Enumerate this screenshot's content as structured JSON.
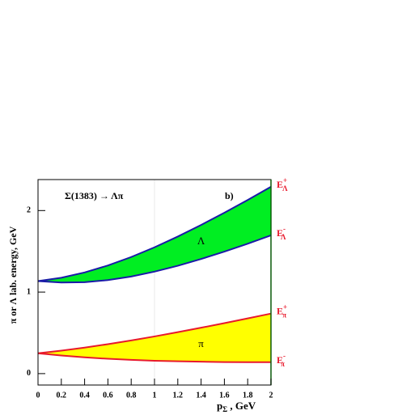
{
  "chart_data": {
    "type": "band",
    "annotation": "Σ(1383) → Λπ",
    "panel": "b)",
    "xlabel": {
      "text": "p",
      "sub": "Σ",
      "rest": " , GeV"
    },
    "ylabel": "π or Λ lab. energy, GeV",
    "x": [
      0,
      0.2,
      0.4,
      0.6,
      0.8,
      1.0,
      1.2,
      1.4,
      1.6,
      1.8,
      2.0
    ],
    "xlim": [
      0,
      2
    ],
    "xticks": [
      0,
      0.2,
      0.4,
      0.6,
      0.8,
      1,
      1.2,
      1.4,
      1.6,
      1.8,
      2
    ],
    "ylim": [
      -0.14,
      2.38
    ],
    "yticks": [
      0,
      1,
      2
    ],
    "series": [
      {
        "name": "Λ",
        "fill": "#00ee22",
        "stroke": "#1a1aa8",
        "upper": [
          1.135,
          1.176,
          1.241,
          1.326,
          1.43,
          1.549,
          1.681,
          1.823,
          1.973,
          2.13,
          2.292
        ],
        "lower": [
          1.135,
          1.117,
          1.121,
          1.147,
          1.191,
          1.251,
          1.323,
          1.406,
          1.496,
          1.593,
          1.696
        ],
        "upper_label": {
          "text": "E",
          "sup": "+",
          "sub": "Λ"
        },
        "lower_label": {
          "text": "E",
          "sup": "-",
          "sub": "Λ"
        }
      },
      {
        "name": "π",
        "fill": "#ffff00",
        "stroke": "#e8192c",
        "upper": [
          0.249,
          0.282,
          0.319,
          0.361,
          0.407,
          0.456,
          0.509,
          0.563,
          0.619,
          0.677,
          0.736
        ],
        "lower": [
          0.249,
          0.222,
          0.2,
          0.182,
          0.169,
          0.158,
          0.151,
          0.146,
          0.142,
          0.14,
          0.14
        ],
        "upper_label": {
          "text": "E",
          "sup": "+",
          "sub": "π"
        },
        "lower_label": {
          "text": "E",
          "sup": "-",
          "sub": "π"
        }
      }
    ]
  }
}
